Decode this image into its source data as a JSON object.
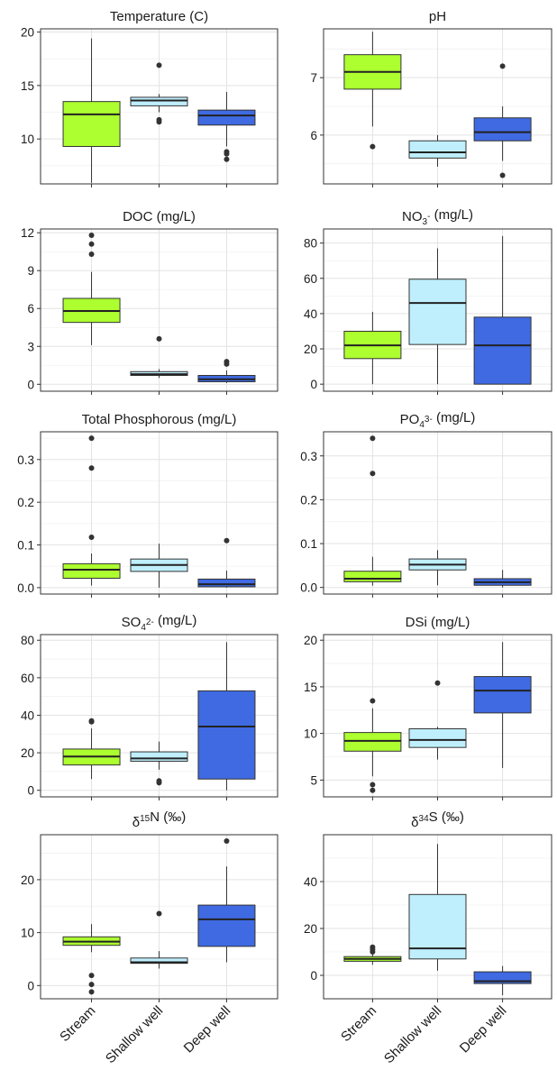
{
  "colors": {
    "Stream": "#adff2f",
    "Shallow well": "#bfeffd",
    "Deep well": "#3f6ae2"
  },
  "chart_data": [
    {
      "type": "box",
      "title_parts": [
        "Temperature (C)"
      ],
      "categories": [
        "Stream",
        "Shallow well",
        "Deep well"
      ],
      "yrange": [
        5.8,
        20.3
      ],
      "yticks": [
        10,
        15,
        20
      ],
      "yticklabels": [
        "10",
        "15",
        "20"
      ],
      "grid": true,
      "boxes": [
        {
          "min": 5.9,
          "q1": 9.3,
          "median": 12.3,
          "q3": 13.5,
          "max": 19.4,
          "outliers": []
        },
        {
          "min": 12.5,
          "q1": 13.1,
          "median": 13.6,
          "q3": 13.9,
          "max": 14.2,
          "outliers": [
            16.9,
            11.8,
            11.6
          ]
        },
        {
          "min": 9.3,
          "q1": 11.3,
          "median": 12.2,
          "q3": 12.7,
          "max": 14.4,
          "outliers": [
            8.8,
            8.6,
            8.1
          ]
        }
      ]
    },
    {
      "type": "box",
      "title_parts": [
        "pH"
      ],
      "categories": [
        "Stream",
        "Shallow well",
        "Deep well"
      ],
      "yrange": [
        5.15,
        7.85
      ],
      "yticks": [
        6,
        7
      ],
      "yticklabels": [
        "6",
        "7"
      ],
      "grid": true,
      "boxes": [
        {
          "min": 6.15,
          "q1": 6.8,
          "median": 7.1,
          "q3": 7.4,
          "max": 7.8,
          "outliers": [
            5.8
          ]
        },
        {
          "min": 5.45,
          "q1": 5.6,
          "median": 5.7,
          "q3": 5.9,
          "max": 6.0,
          "outliers": []
        },
        {
          "min": 5.55,
          "q1": 5.9,
          "median": 6.05,
          "q3": 6.3,
          "max": 6.5,
          "outliers": [
            7.2,
            5.3
          ]
        }
      ]
    },
    {
      "type": "box",
      "title_parts": [
        "DOC (mg/L)"
      ],
      "categories": [
        "Stream",
        "Shallow well",
        "Deep well"
      ],
      "yrange": [
        -0.55,
        12.3
      ],
      "yticks": [
        0,
        3,
        6,
        9,
        12
      ],
      "yticklabels": [
        "0",
        "3",
        "6",
        "9",
        "12"
      ],
      "grid": true,
      "boxes": [
        {
          "min": 3.1,
          "q1": 4.9,
          "median": 5.8,
          "q3": 6.8,
          "max": 8.9,
          "outliers": [
            11.8,
            11.1,
            10.3
          ]
        },
        {
          "min": 0.5,
          "q1": 0.7,
          "median": 0.8,
          "q3": 1.0,
          "max": 1.2,
          "outliers": [
            3.6
          ]
        },
        {
          "min": 0.1,
          "q1": 0.2,
          "median": 0.4,
          "q3": 0.7,
          "max": 1.1,
          "outliers": [
            1.8,
            1.6
          ]
        }
      ]
    },
    {
      "type": "box",
      "title_parts": [
        "NO",
        {
          "sub": "3"
        },
        {
          "sup": "-"
        },
        " (mg/L)"
      ],
      "categories": [
        "Stream",
        "Shallow well",
        "Deep well"
      ],
      "yrange": [
        -4,
        88
      ],
      "yticks": [
        0,
        20,
        40,
        60,
        80
      ],
      "yticklabels": [
        "0",
        "20",
        "40",
        "60",
        "80"
      ],
      "grid": true,
      "boxes": [
        {
          "min": 0,
          "q1": 14.5,
          "median": 22,
          "q3": 30,
          "max": 41,
          "outliers": []
        },
        {
          "min": 0,
          "q1": 22.5,
          "median": 46,
          "q3": 59.5,
          "max": 77,
          "outliers": []
        },
        {
          "min": 0,
          "q1": 0,
          "median": 22,
          "q3": 38,
          "max": 84,
          "outliers": []
        }
      ]
    },
    {
      "type": "box",
      "title_parts": [
        "Total Phosphorous (mg/L)"
      ],
      "categories": [
        "Stream",
        "Shallow well",
        "Deep well"
      ],
      "yrange": [
        -0.015,
        0.365
      ],
      "yticks": [
        0,
        0.1,
        0.2,
        0.3
      ],
      "yticklabels": [
        "0.0",
        "0.1",
        "0.2",
        "0.3"
      ],
      "grid": true,
      "boxes": [
        {
          "min": 0.005,
          "q1": 0.022,
          "median": 0.042,
          "q3": 0.056,
          "max": 0.08,
          "outliers": [
            0.35,
            0.28,
            0.118
          ]
        },
        {
          "min": 0.0,
          "q1": 0.038,
          "median": 0.053,
          "q3": 0.067,
          "max": 0.103,
          "outliers": []
        },
        {
          "min": 0.0,
          "q1": 0.002,
          "median": 0.008,
          "q3": 0.02,
          "max": 0.04,
          "outliers": [
            0.11
          ]
        }
      ]
    },
    {
      "type": "box",
      "title_parts": [
        "PO",
        {
          "sub": "4"
        },
        {
          "sup": "3-"
        },
        " (mg/L)"
      ],
      "categories": [
        "Stream",
        "Shallow well",
        "Deep well"
      ],
      "yrange": [
        -0.015,
        0.355
      ],
      "yticks": [
        0,
        0.1,
        0.2,
        0.3
      ],
      "yticklabels": [
        "0.0",
        "0.1",
        "0.2",
        "0.3"
      ],
      "grid": true,
      "boxes": [
        {
          "min": 0.004,
          "q1": 0.013,
          "median": 0.02,
          "q3": 0.037,
          "max": 0.07,
          "outliers": [
            0.34,
            0.26
          ]
        },
        {
          "min": 0.005,
          "q1": 0.04,
          "median": 0.052,
          "q3": 0.065,
          "max": 0.085,
          "outliers": []
        },
        {
          "min": 0.0,
          "q1": 0.005,
          "median": 0.012,
          "q3": 0.02,
          "max": 0.04,
          "outliers": []
        }
      ]
    },
    {
      "type": "box",
      "title_parts": [
        "SO",
        {
          "sub": "4"
        },
        {
          "sup": "2-"
        },
        " (mg/L)"
      ],
      "categories": [
        "Stream",
        "Shallow well",
        "Deep well"
      ],
      "yrange": [
        -3.5,
        83
      ],
      "yticks": [
        0,
        20,
        40,
        60,
        80
      ],
      "yticklabels": [
        "0",
        "20",
        "40",
        "60",
        "80"
      ],
      "grid": true,
      "boxes": [
        {
          "min": 6,
          "q1": 13.5,
          "median": 18,
          "q3": 22,
          "max": 33,
          "outliers": [
            37,
            36.5
          ]
        },
        {
          "min": 11,
          "q1": 15.5,
          "median": 17,
          "q3": 20.5,
          "max": 26,
          "outliers": [
            5,
            4
          ]
        },
        {
          "min": 0,
          "q1": 6,
          "median": 34,
          "q3": 53,
          "max": 79,
          "outliers": []
        }
      ]
    },
    {
      "type": "box",
      "title_parts": [
        "DSi (mg/L)"
      ],
      "categories": [
        "Stream",
        "Shallow well",
        "Deep well"
      ],
      "yrange": [
        3.2,
        20.6
      ],
      "yticks": [
        5,
        10,
        15,
        20
      ],
      "yticklabels": [
        "5",
        "10",
        "15",
        "20"
      ],
      "grid": true,
      "boxes": [
        {
          "min": 5.4,
          "q1": 8.1,
          "median": 9.2,
          "q3": 10.1,
          "max": 12.7,
          "outliers": [
            13.5,
            4.5,
            3.9
          ]
        },
        {
          "min": 7.2,
          "q1": 8.5,
          "median": 9.3,
          "q3": 10.5,
          "max": 10.7,
          "outliers": [
            15.4
          ]
        },
        {
          "min": 6.3,
          "q1": 12.2,
          "median": 14.6,
          "q3": 16.1,
          "max": 19.8,
          "outliers": []
        }
      ]
    },
    {
      "type": "box",
      "title_parts": [
        "δ",
        {
          "sup": "15"
        },
        "N (‰)"
      ],
      "categories": [
        "Stream",
        "Shallow well",
        "Deep well"
      ],
      "yrange": [
        -2.5,
        28.5
      ],
      "yticks": [
        0,
        10,
        20
      ],
      "yticklabels": [
        "0",
        "10",
        "20"
      ],
      "grid": true,
      "boxes": [
        {
          "min": 6.3,
          "q1": 7.6,
          "median": 8.3,
          "q3": 9.2,
          "max": 11.6,
          "outliers": [
            1.9,
            0.2,
            -1.2
          ]
        },
        {
          "min": 3.2,
          "q1": 4.2,
          "median": 4.4,
          "q3": 5.2,
          "max": 6.5,
          "outliers": [
            13.6
          ]
        },
        {
          "min": 4.4,
          "q1": 7.4,
          "median": 12.5,
          "q3": 15.2,
          "max": 22.5,
          "outliers": [
            27.3
          ]
        }
      ]
    },
    {
      "type": "box",
      "title_parts": [
        "δ",
        {
          "sup": "34"
        },
        "S (‰)"
      ],
      "categories": [
        "Stream",
        "Shallow well",
        "Deep well"
      ],
      "yrange": [
        -10,
        60
      ],
      "yticks": [
        0,
        20,
        40
      ],
      "yticklabels": [
        "0",
        "20",
        "40"
      ],
      "grid": true,
      "boxes": [
        {
          "min": 4.5,
          "q1": 6,
          "median": 7,
          "q3": 8,
          "max": 9,
          "outliers": [
            12,
            11,
            10
          ]
        },
        {
          "min": 2,
          "q1": 7,
          "median": 11.5,
          "q3": 34.5,
          "max": 56,
          "outliers": []
        },
        {
          "min": -8.5,
          "q1": -3.5,
          "median": -2.5,
          "q3": 1.5,
          "max": 4,
          "outliers": []
        }
      ]
    }
  ]
}
